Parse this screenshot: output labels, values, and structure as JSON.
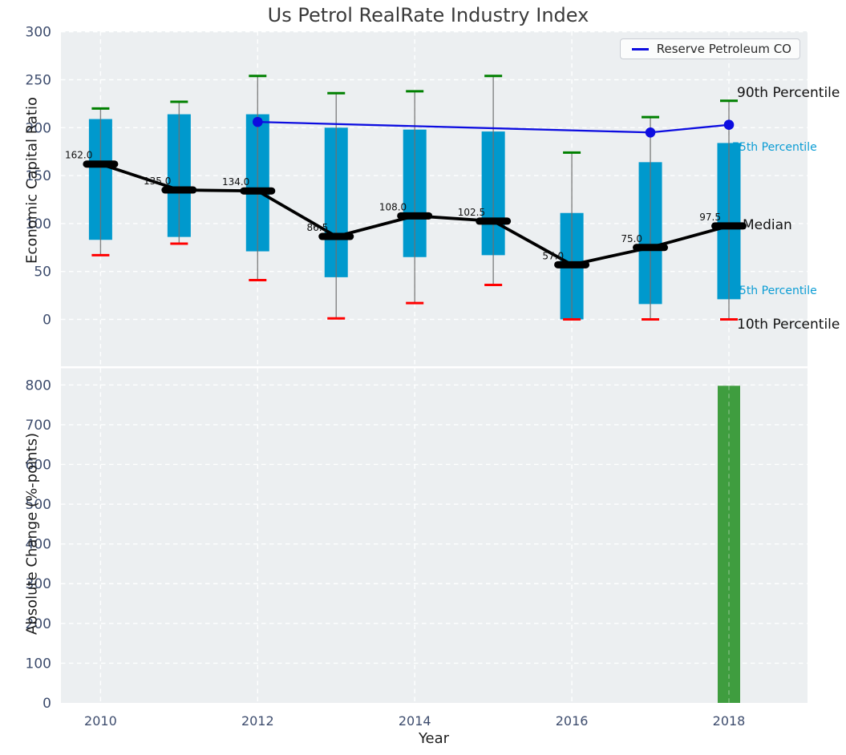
{
  "labels": {
    "title": "Us Petrol RealRate Industry Index",
    "top_ylabel": "Economic Capital Ratio",
    "bottom_ylabel": "Absolute Change (%-points)",
    "xlabel": "Year",
    "p90": "90th Percentile",
    "p75": "75th Percentile",
    "median": "Median",
    "p25": "25th Percentile",
    "p10": "10th Percentile"
  },
  "legend": {
    "label": "Reserve Petroleum CO"
  },
  "colors": {
    "panel_bg": "#eceff1",
    "grid": "#ffffff",
    "box": "#0099cd",
    "percentile_text": "#0a9cd4",
    "cap_90": "#008000",
    "cap_10": "#ff0000",
    "whisker": "#707070",
    "median": "#000000",
    "company_line": "#0d0de0",
    "bar": "#3f9d3f",
    "tick_text": "#3e4d6e"
  },
  "chart_data": [
    {
      "type": "box",
      "panel": "top",
      "title": "Us Petrol RealRate Industry Index",
      "ylabel": "Economic Capital Ratio",
      "xlabel": "Year",
      "years": [
        2010,
        2011,
        2012,
        2013,
        2014,
        2015,
        2016,
        2017,
        2018
      ],
      "p90": [
        220,
        227,
        254,
        236,
        238,
        254,
        174,
        211,
        228
      ],
      "p75": [
        209,
        214,
        214,
        200,
        198,
        196,
        111,
        164,
        184
      ],
      "median": [
        162.0,
        135.0,
        134.0,
        86.5,
        108.0,
        102.5,
        57.0,
        75.0,
        97.5
      ],
      "p25": [
        83,
        86,
        71,
        44,
        65,
        67,
        0,
        16,
        21
      ],
      "p10": [
        67,
        79,
        41,
        1,
        17,
        36,
        0,
        0,
        0
      ],
      "series": [
        {
          "name": "Reserve Petroleum CO",
          "x": [
            2012,
            2017,
            2018
          ],
          "values": [
            206,
            195,
            203
          ]
        }
      ],
      "yticks": [
        0,
        50,
        100,
        150,
        200,
        250,
        300
      ],
      "xticks": [
        2010,
        2012,
        2014,
        2016,
        2018
      ],
      "ylim": [
        -49,
        300
      ],
      "grid": true,
      "legend_position": "upper right",
      "annotations": [
        "90th Percentile",
        "75th Percentile",
        "Median",
        "25th Percentile",
        "10th Percentile"
      ]
    },
    {
      "type": "bar",
      "panel": "bottom",
      "ylabel": "Absolute Change (%-points)",
      "xlabel": "Year",
      "categories": [
        2018
      ],
      "values": [
        798
      ],
      "yticks": [
        0,
        100,
        200,
        300,
        400,
        500,
        600,
        700,
        800
      ],
      "xticks": [
        2010,
        2012,
        2014,
        2016,
        2018
      ],
      "ylim": [
        0,
        841
      ],
      "grid": true
    }
  ]
}
